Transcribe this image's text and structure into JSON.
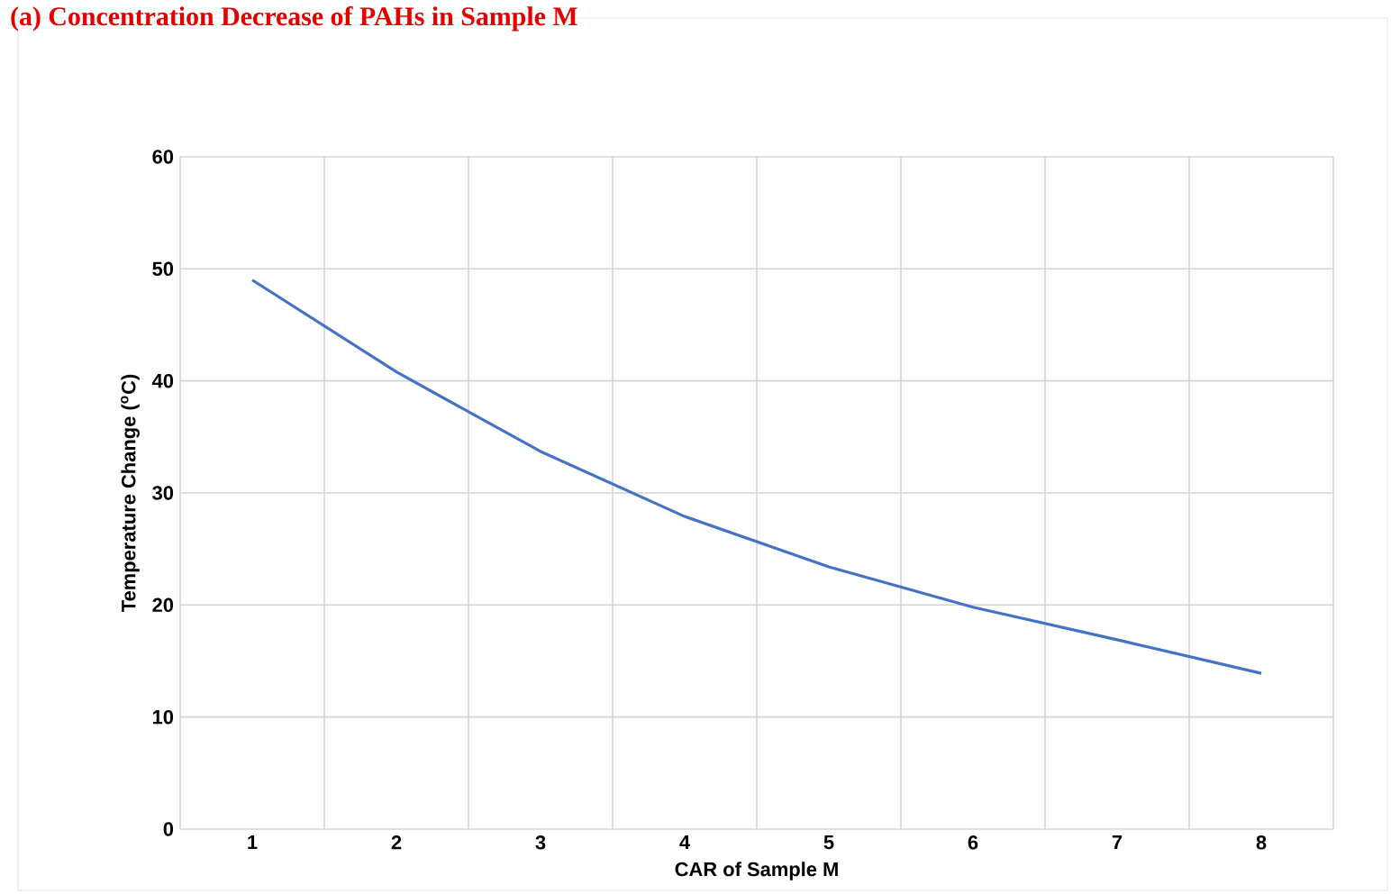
{
  "chart_data": {
    "type": "line",
    "title": "(a) Concentration Decrease of PAHs in Sample M",
    "xlabel": "CAR of Sample M",
    "ylabel": "Temperature Change ($^{o}$C)",
    "categories": [
      "1",
      "2",
      "3",
      "4",
      "5",
      "6",
      "7",
      "8"
    ],
    "series": [
      {
        "color": "#4472c4",
        "values": [
          49.0,
          40.8,
          33.7,
          27.9,
          23.4,
          19.8,
          16.9,
          13.9
        ]
      }
    ],
    "ylim": [
      0,
      60
    ],
    "yticks": [
      0,
      10,
      20,
      30,
      40,
      50,
      60
    ],
    "grid": true,
    "marker": "none",
    "line_style": "solid"
  }
}
